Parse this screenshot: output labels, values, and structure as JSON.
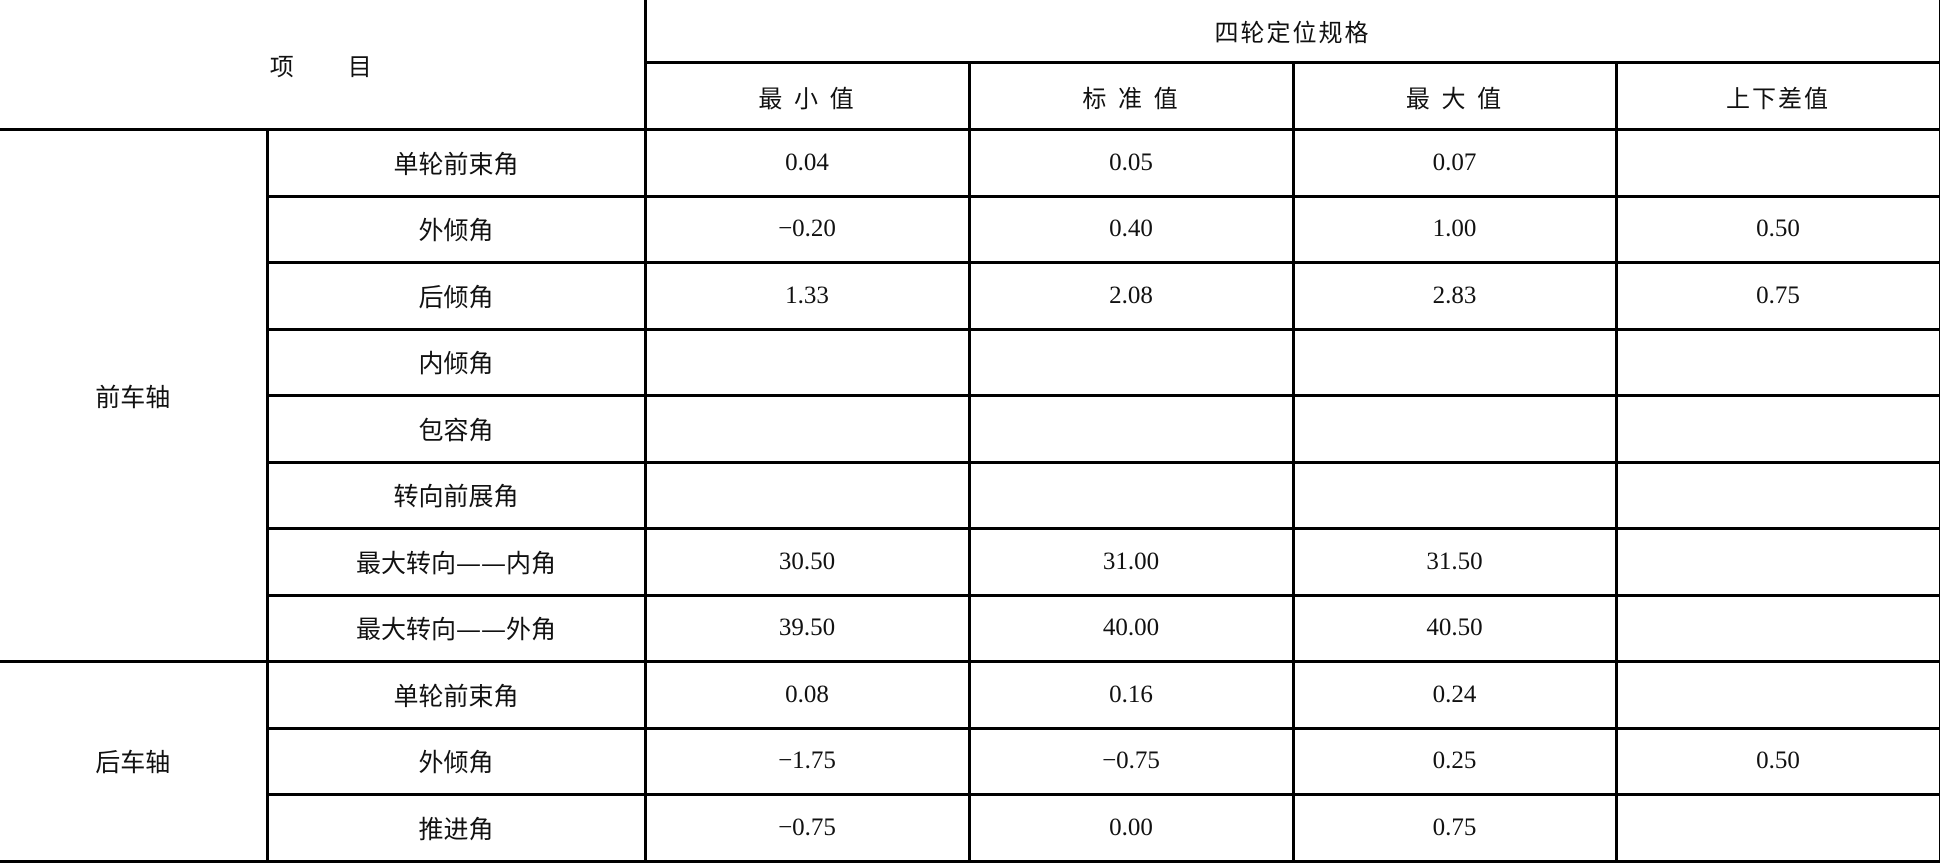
{
  "header": {
    "item": "项　　目",
    "spec_title": "四轮定位规格",
    "columns": [
      "最 小 值",
      "标 准 值",
      "最 大 值",
      "上下差值"
    ]
  },
  "groups": [
    {
      "axle": "前车轴",
      "rows": [
        {
          "name": "单轮前束角",
          "min": "0.04",
          "std": "0.05",
          "max": "0.07",
          "tol": ""
        },
        {
          "name": "外倾角",
          "min": "−0.20",
          "std": "0.40",
          "max": "1.00",
          "tol": "0.50"
        },
        {
          "name": "后倾角",
          "min": "1.33",
          "std": "2.08",
          "max": "2.83",
          "tol": "0.75"
        },
        {
          "name": "内倾角",
          "min": "",
          "std": "",
          "max": "",
          "tol": ""
        },
        {
          "name": "包容角",
          "min": "",
          "std": "",
          "max": "",
          "tol": ""
        },
        {
          "name": "转向前展角",
          "min": "",
          "std": "",
          "max": "",
          "tol": ""
        },
        {
          "name": "最大转向——内角",
          "min": "30.50",
          "std": "31.00",
          "max": "31.50",
          "tol": ""
        },
        {
          "name": "最大转向——外角",
          "min": "39.50",
          "std": "40.00",
          "max": "40.50",
          "tol": ""
        }
      ]
    },
    {
      "axle": "后车轴",
      "rows": [
        {
          "name": "单轮前束角",
          "min": "0.08",
          "std": "0.16",
          "max": "0.24",
          "tol": ""
        },
        {
          "name": "外倾角",
          "min": "−1.75",
          "std": "−0.75",
          "max": "0.25",
          "tol": "0.50"
        },
        {
          "name": "推进角",
          "min": "−0.75",
          "std": "0.00",
          "max": "0.75",
          "tol": ""
        }
      ]
    }
  ]
}
